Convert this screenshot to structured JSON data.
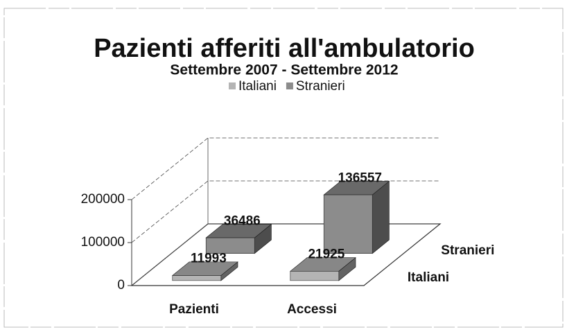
{
  "chart_data": {
    "type": "bar3d",
    "title": "Pazienti afferiti all'ambulatorio",
    "subtitle": "Settembre 2007 - Settembre 2012",
    "categories": [
      "Pazienti",
      "Accessi"
    ],
    "series": [
      {
        "name": "Italiani",
        "color": "#b4b4b4",
        "values": [
          11993,
          21925
        ]
      },
      {
        "name": "Stranieri",
        "color": "#8c8c8c",
        "values": [
          36486,
          136557
        ]
      }
    ],
    "ylim": [
      0,
      200000
    ],
    "yticks": [
      0,
      100000,
      200000
    ],
    "grid": true,
    "legend": "top"
  }
}
